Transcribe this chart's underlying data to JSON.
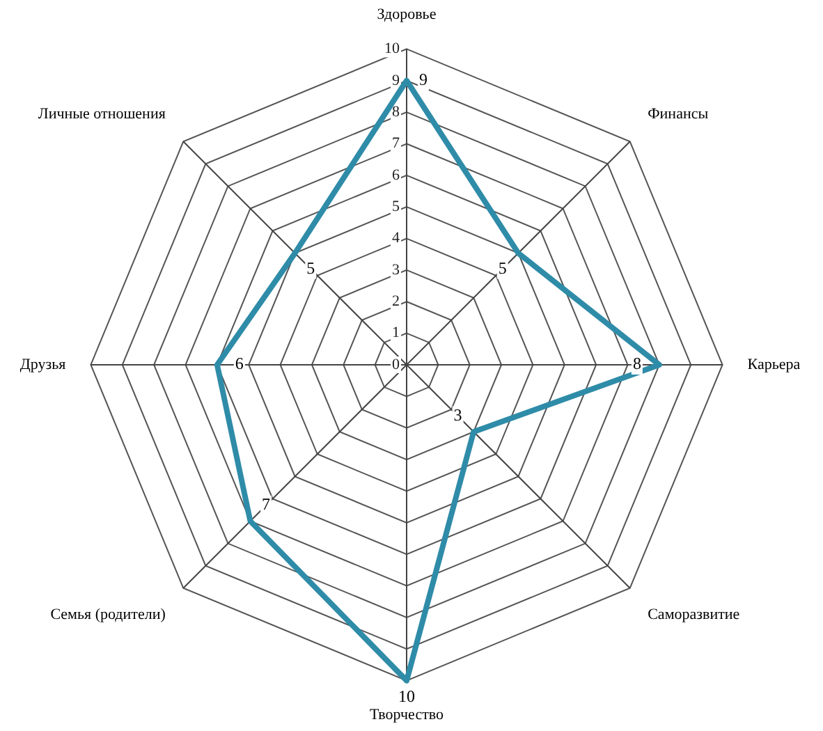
{
  "chart_data": {
    "type": "radar",
    "categories": [
      "Здоровье",
      "Финансы",
      "Карьера",
      "Саморазвитие",
      "Творчество",
      "Семья (родители)",
      "Друзья",
      "Личные отношения"
    ],
    "series": [
      {
        "color": "#2f8ca8",
        "values": [
          9,
          5,
          8,
          3,
          10,
          7,
          6,
          5
        ]
      }
    ],
    "ylim": [
      0,
      10
    ],
    "yticks": [
      0,
      1,
      2,
      3,
      4,
      5,
      6,
      7,
      8,
      9,
      10
    ],
    "grid": true,
    "data_labels": true,
    "marker": "none",
    "legend": false
  }
}
